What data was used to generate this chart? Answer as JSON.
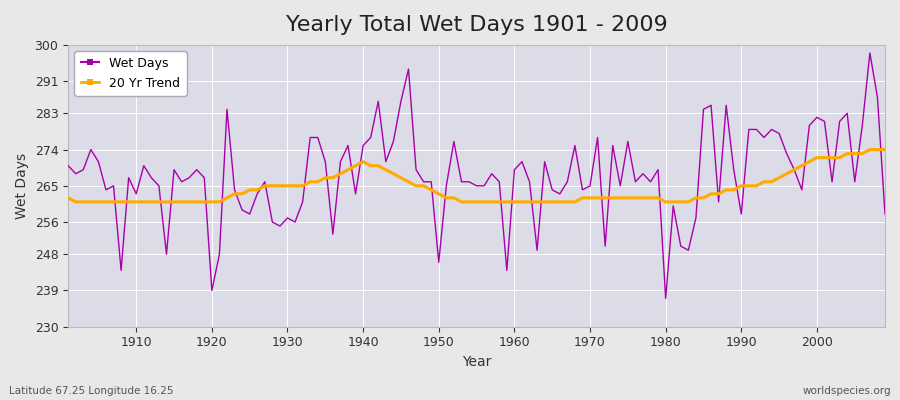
{
  "title": "Yearly Total Wet Days 1901 - 2009",
  "xlabel": "Year",
  "ylabel": "Wet Days",
  "bottom_left_label": "Latitude 67.25 Longitude 16.25",
  "bottom_right_label": "worldspecies.org",
  "ylim": [
    230,
    300
  ],
  "yticks": [
    230,
    239,
    248,
    256,
    265,
    274,
    283,
    291,
    300
  ],
  "xlim": [
    1901,
    2009
  ],
  "xticks": [
    1910,
    1920,
    1930,
    1940,
    1950,
    1960,
    1970,
    1980,
    1990,
    2000
  ],
  "years": [
    1901,
    1902,
    1903,
    1904,
    1905,
    1906,
    1907,
    1908,
    1909,
    1910,
    1911,
    1912,
    1913,
    1914,
    1915,
    1916,
    1917,
    1918,
    1919,
    1920,
    1921,
    1922,
    1923,
    1924,
    1925,
    1926,
    1927,
    1928,
    1929,
    1930,
    1931,
    1932,
    1933,
    1934,
    1935,
    1936,
    1937,
    1938,
    1939,
    1940,
    1941,
    1942,
    1943,
    1944,
    1945,
    1946,
    1947,
    1948,
    1949,
    1950,
    1951,
    1952,
    1953,
    1954,
    1955,
    1956,
    1957,
    1958,
    1959,
    1960,
    1961,
    1962,
    1963,
    1964,
    1965,
    1966,
    1967,
    1968,
    1969,
    1970,
    1971,
    1972,
    1973,
    1974,
    1975,
    1976,
    1977,
    1978,
    1979,
    1980,
    1981,
    1982,
    1983,
    1984,
    1985,
    1986,
    1987,
    1988,
    1989,
    1990,
    1991,
    1992,
    1993,
    1994,
    1995,
    1996,
    1997,
    1998,
    1999,
    2000,
    2001,
    2002,
    2003,
    2004,
    2005,
    2006,
    2007,
    2008,
    2009
  ],
  "wet_days": [
    270,
    268,
    269,
    274,
    271,
    264,
    265,
    244,
    267,
    263,
    270,
    267,
    265,
    248,
    269,
    266,
    267,
    269,
    267,
    239,
    248,
    284,
    264,
    259,
    258,
    263,
    266,
    256,
    255,
    257,
    256,
    261,
    277,
    277,
    271,
    253,
    271,
    275,
    263,
    275,
    277,
    286,
    271,
    276,
    286,
    294,
    269,
    266,
    266,
    246,
    265,
    276,
    266,
    266,
    265,
    265,
    268,
    266,
    244,
    269,
    271,
    266,
    249,
    271,
    264,
    263,
    266,
    275,
    264,
    265,
    277,
    250,
    275,
    265,
    276,
    266,
    268,
    266,
    269,
    237,
    260,
    250,
    249,
    257,
    284,
    285,
    261,
    285,
    269,
    258,
    279,
    279,
    277,
    279,
    278,
    273,
    269,
    264,
    280,
    282,
    281,
    266,
    281,
    283,
    266,
    280,
    298,
    287,
    258
  ],
  "trend_values": [
    262,
    261,
    261,
    261,
    261,
    261,
    261,
    261,
    261,
    261,
    261,
    261,
    261,
    261,
    261,
    261,
    261,
    261,
    261,
    261,
    261,
    262,
    263,
    263,
    264,
    264,
    265,
    265,
    265,
    265,
    265,
    265,
    266,
    266,
    267,
    267,
    268,
    269,
    270,
    271,
    270,
    270,
    269,
    268,
    267,
    266,
    265,
    265,
    264,
    263,
    262,
    262,
    261,
    261,
    261,
    261,
    261,
    261,
    261,
    261,
    261,
    261,
    261,
    261,
    261,
    261,
    261,
    261,
    262,
    262,
    262,
    262,
    262,
    262,
    262,
    262,
    262,
    262,
    262,
    261,
    261,
    261,
    261,
    262,
    262,
    263,
    263,
    264,
    264,
    265,
    265,
    265,
    266,
    266,
    267,
    268,
    269,
    270,
    271,
    272,
    272,
    272,
    272,
    273,
    273,
    273,
    274,
    274,
    274
  ],
  "line_color": "#aa00aa",
  "trend_color": "#ffaa00",
  "plot_bg_color": "#dcdce8",
  "fig_bg_color": "#e8e8e8",
  "grid_color": "#ffffff",
  "title_fontsize": 16,
  "label_fontsize": 10,
  "tick_fontsize": 9,
  "legend_fontsize": 9
}
